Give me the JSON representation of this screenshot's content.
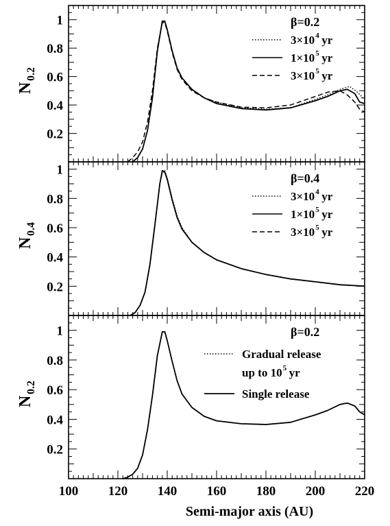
{
  "chart_data": [
    {
      "type": "line",
      "ylabel": "N",
      "ylabel_sub": "0.2",
      "xlim": [
        100,
        220
      ],
      "ylim": [
        0,
        1.1
      ],
      "yticks": [
        0.2,
        0.4,
        0.6,
        0.8,
        1
      ],
      "ytick_labels": [
        "0.2",
        "0.4",
        "0.6",
        "0.8",
        "1"
      ],
      "legend_title": "β=0.2",
      "legend_location": "top-right",
      "series": [
        {
          "label": "3×10",
          "label_exp": "4",
          "label_unit": "yr",
          "style": "dotted",
          "points": [
            [
              126,
              0.0
            ],
            [
              128,
              0.03
            ],
            [
              130,
              0.09
            ],
            [
              132,
              0.22
            ],
            [
              134,
              0.45
            ],
            [
              136,
              0.78
            ],
            [
              138,
              0.99
            ],
            [
              139,
              0.99
            ],
            [
              140,
              0.93
            ],
            [
              142,
              0.78
            ],
            [
              144,
              0.66
            ],
            [
              146,
              0.59
            ],
            [
              150,
              0.51
            ],
            [
              155,
              0.45
            ],
            [
              160,
              0.42
            ],
            [
              170,
              0.38
            ],
            [
              180,
              0.37
            ],
            [
              190,
              0.38
            ],
            [
              200,
              0.44
            ],
            [
              205,
              0.47
            ],
            [
              210,
              0.51
            ],
            [
              214,
              0.53
            ],
            [
              217,
              0.49
            ],
            [
              220,
              0.44
            ]
          ]
        },
        {
          "label": "1×10",
          "label_exp": "5",
          "label_unit": "yr",
          "style": "solid",
          "points": [
            [
              126,
              0.0
            ],
            [
              128,
              0.03
            ],
            [
              130,
              0.09
            ],
            [
              132,
              0.22
            ],
            [
              134,
              0.45
            ],
            [
              136,
              0.78
            ],
            [
              138,
              0.99
            ],
            [
              139,
              0.99
            ],
            [
              140,
              0.93
            ],
            [
              142,
              0.78
            ],
            [
              144,
              0.66
            ],
            [
              146,
              0.59
            ],
            [
              150,
              0.51
            ],
            [
              155,
              0.45
            ],
            [
              160,
              0.41
            ],
            [
              170,
              0.375
            ],
            [
              180,
              0.365
            ],
            [
              190,
              0.38
            ],
            [
              200,
              0.43
            ],
            [
              205,
              0.46
            ],
            [
              210,
              0.5
            ],
            [
              213,
              0.51
            ],
            [
              216,
              0.48
            ],
            [
              218,
              0.42
            ],
            [
              220,
              0.41
            ]
          ]
        },
        {
          "label": "3×10",
          "label_exp": "5",
          "label_unit": "yr",
          "style": "dashed",
          "points": [
            [
              124,
              0.0
            ],
            [
              126,
              0.03
            ],
            [
              128,
              0.07
            ],
            [
              130,
              0.14
            ],
            [
              132,
              0.28
            ],
            [
              134,
              0.5
            ],
            [
              136,
              0.8
            ],
            [
              138,
              0.98
            ],
            [
              139,
              0.98
            ],
            [
              140,
              0.92
            ],
            [
              142,
              0.77
            ],
            [
              144,
              0.65
            ],
            [
              146,
              0.58
            ],
            [
              150,
              0.5
            ],
            [
              155,
              0.45
            ],
            [
              160,
              0.42
            ],
            [
              170,
              0.385
            ],
            [
              180,
              0.38
            ],
            [
              190,
              0.4
            ],
            [
              200,
              0.46
            ],
            [
              205,
              0.49
            ],
            [
              210,
              0.5
            ],
            [
              213,
              0.47
            ],
            [
              216,
              0.42
            ],
            [
              218,
              0.37
            ],
            [
              220,
              0.35
            ]
          ]
        }
      ]
    },
    {
      "type": "line",
      "ylabel": "N",
      "ylabel_sub": "0.4",
      "xlim": [
        100,
        220
      ],
      "ylim": [
        0,
        1.05
      ],
      "yticks": [
        0.2,
        0.4,
        0.6,
        0.8,
        1
      ],
      "ytick_labels": [
        "0.2",
        "0.4",
        "0.6",
        "0.8",
        "1"
      ],
      "legend_title": "β=0.4",
      "legend_location": "top-right",
      "series": [
        {
          "label": "3×10",
          "label_exp": "4",
          "label_unit": "yr",
          "style": "dotted",
          "points": [
            [
              125,
              0.0
            ],
            [
              127,
              0.02
            ],
            [
              129,
              0.07
            ],
            [
              131,
              0.16
            ],
            [
              133,
              0.35
            ],
            [
              135,
              0.62
            ],
            [
              137,
              0.9
            ],
            [
              138,
              0.99
            ],
            [
              139,
              0.99
            ],
            [
              140,
              0.94
            ],
            [
              142,
              0.8
            ],
            [
              144,
              0.68
            ],
            [
              146,
              0.6
            ],
            [
              150,
              0.5
            ],
            [
              155,
              0.43
            ],
            [
              160,
              0.38
            ],
            [
              170,
              0.32
            ],
            [
              180,
              0.28
            ],
            [
              190,
              0.25
            ],
            [
              200,
              0.23
            ],
            [
              210,
              0.21
            ],
            [
              220,
              0.2
            ]
          ]
        },
        {
          "label": "1×10",
          "label_exp": "5",
          "label_unit": "yr",
          "style": "solid",
          "points": [
            [
              125,
              0.0
            ],
            [
              127,
              0.02
            ],
            [
              129,
              0.07
            ],
            [
              131,
              0.16
            ],
            [
              133,
              0.35
            ],
            [
              135,
              0.62
            ],
            [
              137,
              0.9
            ],
            [
              138,
              0.99
            ],
            [
              139,
              0.98
            ],
            [
              140,
              0.93
            ],
            [
              142,
              0.79
            ],
            [
              144,
              0.67
            ],
            [
              146,
              0.59
            ],
            [
              150,
              0.5
            ],
            [
              155,
              0.43
            ],
            [
              160,
              0.38
            ],
            [
              170,
              0.32
            ],
            [
              180,
              0.28
            ],
            [
              190,
              0.25
            ],
            [
              200,
              0.23
            ],
            [
              210,
              0.21
            ],
            [
              220,
              0.2
            ]
          ]
        },
        {
          "label": "3×10",
          "label_exp": "5",
          "label_unit": "yr",
          "style": "dashed",
          "points": [
            [
              125,
              0.0
            ],
            [
              127,
              0.02
            ],
            [
              129,
              0.07
            ],
            [
              131,
              0.16
            ],
            [
              133,
              0.35
            ],
            [
              135,
              0.62
            ],
            [
              137,
              0.9
            ],
            [
              138,
              0.98
            ],
            [
              139,
              0.98
            ],
            [
              140,
              0.93
            ],
            [
              142,
              0.79
            ],
            [
              144,
              0.67
            ],
            [
              146,
              0.59
            ],
            [
              150,
              0.5
            ],
            [
              155,
              0.43
            ],
            [
              160,
              0.38
            ],
            [
              170,
              0.32
            ],
            [
              180,
              0.28
            ],
            [
              190,
              0.25
            ],
            [
              200,
              0.23
            ],
            [
              210,
              0.21
            ],
            [
              220,
              0.2
            ]
          ]
        }
      ]
    },
    {
      "type": "line",
      "ylabel": "N",
      "ylabel_sub": "0.2",
      "xlabel": "Semi-major axis (AU)",
      "xlim": [
        100,
        220
      ],
      "ylim": [
        0,
        1.1
      ],
      "xticks": [
        100,
        120,
        140,
        160,
        180,
        200,
        220
      ],
      "xtick_labels": [
        "100",
        "120",
        "140",
        "160",
        "180",
        "200",
        "220"
      ],
      "yticks": [
        0.2,
        0.4,
        0.6,
        0.8,
        1
      ],
      "ytick_labels": [
        "0.2",
        "0.4",
        "0.6",
        "0.8",
        "1"
      ],
      "legend_title": "β=0.2",
      "legend_location": "top-right",
      "series": [
        {
          "label": "Gradual release",
          "label2": "up to 10",
          "label_exp": "5",
          "label_unit": "yr",
          "style": "dotted",
          "points": [
            [
              122,
              0.0
            ],
            [
              124,
              0.01
            ],
            [
              126,
              0.03
            ],
            [
              128,
              0.07
            ],
            [
              130,
              0.16
            ],
            [
              132,
              0.33
            ],
            [
              134,
              0.56
            ],
            [
              136,
              0.83
            ],
            [
              138,
              0.99
            ],
            [
              139,
              0.99
            ],
            [
              140,
              0.93
            ],
            [
              142,
              0.79
            ],
            [
              144,
              0.66
            ],
            [
              146,
              0.57
            ],
            [
              150,
              0.48
            ],
            [
              155,
              0.42
            ],
            [
              160,
              0.39
            ],
            [
              170,
              0.37
            ],
            [
              180,
              0.365
            ],
            [
              190,
              0.38
            ],
            [
              200,
              0.43
            ],
            [
              205,
              0.46
            ],
            [
              210,
              0.5
            ],
            [
              213,
              0.51
            ],
            [
              216,
              0.49
            ],
            [
              218,
              0.45
            ],
            [
              220,
              0.43
            ]
          ]
        },
        {
          "label": "Single release",
          "style": "solid",
          "points": [
            [
              122,
              0.0
            ],
            [
              124,
              0.01
            ],
            [
              126,
              0.03
            ],
            [
              128,
              0.07
            ],
            [
              130,
              0.16
            ],
            [
              132,
              0.33
            ],
            [
              134,
              0.56
            ],
            [
              136,
              0.83
            ],
            [
              138,
              0.99
            ],
            [
              139,
              0.99
            ],
            [
              140,
              0.93
            ],
            [
              142,
              0.79
            ],
            [
              144,
              0.66
            ],
            [
              146,
              0.57
            ],
            [
              150,
              0.48
            ],
            [
              155,
              0.42
            ],
            [
              160,
              0.39
            ],
            [
              170,
              0.37
            ],
            [
              180,
              0.365
            ],
            [
              190,
              0.38
            ],
            [
              200,
              0.43
            ],
            [
              205,
              0.46
            ],
            [
              210,
              0.5
            ],
            [
              213,
              0.51
            ],
            [
              216,
              0.49
            ],
            [
              218,
              0.45
            ],
            [
              220,
              0.43
            ]
          ]
        }
      ]
    }
  ]
}
